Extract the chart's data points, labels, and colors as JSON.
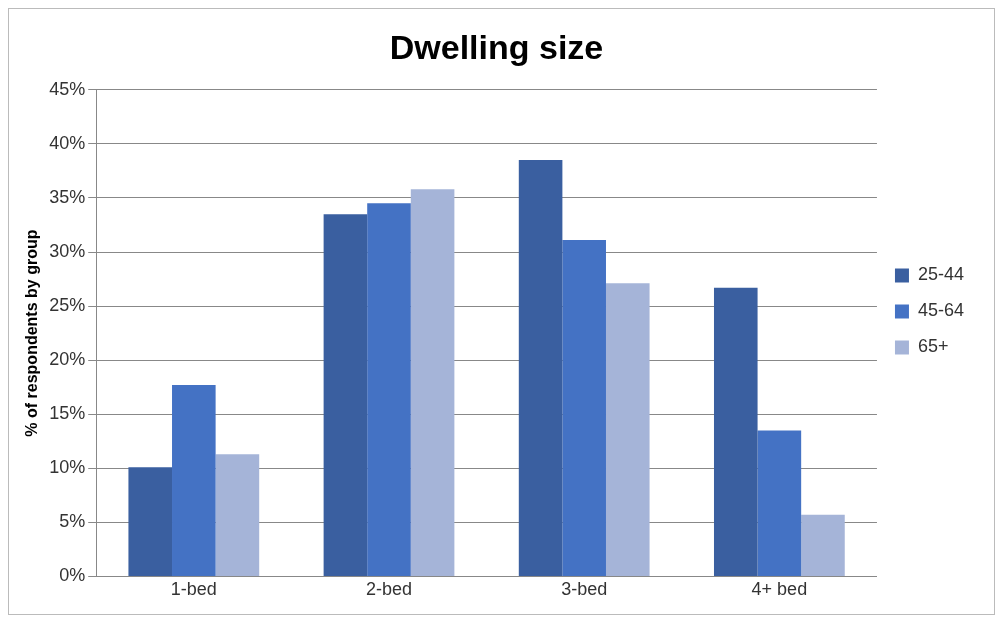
{
  "chart_data": {
    "type": "bar",
    "title": "Dwelling size",
    "ylabel": "% of respondents by group",
    "categories": [
      "1-bed",
      "2-bed",
      "3-bed",
      "4+ bed"
    ],
    "series": [
      {
        "name": "25-44",
        "color": "#3a5fa0",
        "values": [
          10.1,
          33.5,
          38.5,
          26.7
        ]
      },
      {
        "name": "45-64",
        "color": "#4472c4",
        "values": [
          17.7,
          34.5,
          31.1,
          13.5
        ]
      },
      {
        "name": "65+",
        "color": "#a5b4d8",
        "values": [
          11.3,
          35.8,
          27.1,
          5.7
        ]
      }
    ],
    "ylim": [
      0,
      45
    ],
    "yticks": [
      {
        "value": 0,
        "label": "0%"
      },
      {
        "value": 5,
        "label": "5%"
      },
      {
        "value": 10,
        "label": "10%"
      },
      {
        "value": 15,
        "label": "15%"
      },
      {
        "value": 20,
        "label": "20%"
      },
      {
        "value": 25,
        "label": "25%"
      },
      {
        "value": 30,
        "label": "30%"
      },
      {
        "value": 35,
        "label": "35%"
      },
      {
        "value": 40,
        "label": "40%"
      },
      {
        "value": 45,
        "label": "45%"
      }
    ],
    "grid": "y",
    "legend": "right"
  }
}
